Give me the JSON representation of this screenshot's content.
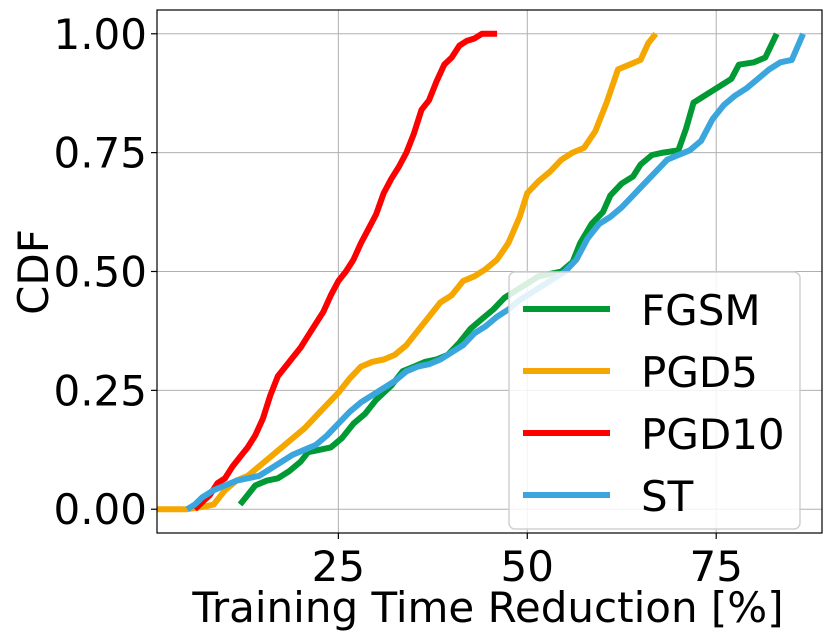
{
  "chart_data": {
    "type": "line",
    "title": "",
    "xlabel": "Training Time Reduction [%]",
    "ylabel": "CDF",
    "xlim": [
      1,
      89
    ],
    "ylim": [
      -0.05,
      1.05
    ],
    "xticks": [
      25,
      50,
      75
    ],
    "xtick_labels": [
      "25",
      "50",
      "75"
    ],
    "yticks": [
      0,
      0.25,
      0.5,
      0.75,
      1.0
    ],
    "ytick_labels": [
      "0.00",
      "0.25",
      "0.50",
      "0.75",
      "1.00"
    ],
    "grid": true,
    "legend": {
      "position": "bottom-right"
    },
    "series": [
      {
        "name": "FGSM",
        "color": "#009933",
        "points": [
          [
            12,
            0.01
          ],
          [
            13,
            0.03
          ],
          [
            14,
            0.05
          ],
          [
            15.5,
            0.06
          ],
          [
            17,
            0.065
          ],
          [
            18.5,
            0.08
          ],
          [
            20,
            0.1
          ],
          [
            21,
            0.12
          ],
          [
            22.5,
            0.125
          ],
          [
            24,
            0.13
          ],
          [
            25.5,
            0.15
          ],
          [
            27,
            0.18
          ],
          [
            28.5,
            0.2
          ],
          [
            30,
            0.23
          ],
          [
            32,
            0.26
          ],
          [
            33.5,
            0.29
          ],
          [
            35,
            0.3
          ],
          [
            36.5,
            0.31
          ],
          [
            38,
            0.315
          ],
          [
            39.5,
            0.325
          ],
          [
            41,
            0.35
          ],
          [
            42.5,
            0.38
          ],
          [
            44,
            0.4
          ],
          [
            45.5,
            0.42
          ],
          [
            47,
            0.445
          ],
          [
            48.5,
            0.46
          ],
          [
            50,
            0.475
          ],
          [
            51.5,
            0.49
          ],
          [
            53,
            0.495
          ],
          [
            54.5,
            0.5
          ],
          [
            56,
            0.52
          ],
          [
            57,
            0.56
          ],
          [
            58.5,
            0.6
          ],
          [
            60,
            0.625
          ],
          [
            61,
            0.66
          ],
          [
            62.5,
            0.685
          ],
          [
            64,
            0.7
          ],
          [
            65,
            0.725
          ],
          [
            66.5,
            0.745
          ],
          [
            68,
            0.75
          ],
          [
            70,
            0.755
          ],
          [
            71,
            0.8
          ],
          [
            72,
            0.855
          ],
          [
            74,
            0.875
          ],
          [
            75.5,
            0.89
          ],
          [
            77,
            0.905
          ],
          [
            78,
            0.935
          ],
          [
            80,
            0.94
          ],
          [
            81.5,
            0.95
          ],
          [
            83,
            1.0
          ]
        ]
      },
      {
        "name": "PGD5",
        "color": "#f5a700",
        "points": [
          [
            1,
            0.0
          ],
          [
            3,
            0.0
          ],
          [
            5,
            0.0
          ],
          [
            7,
            0.005
          ],
          [
            8.5,
            0.01
          ],
          [
            10,
            0.04
          ],
          [
            11.5,
            0.06
          ],
          [
            13,
            0.07
          ],
          [
            14.5,
            0.09
          ],
          [
            16,
            0.11
          ],
          [
            17.5,
            0.13
          ],
          [
            19,
            0.15
          ],
          [
            20.5,
            0.17
          ],
          [
            22,
            0.195
          ],
          [
            23.5,
            0.22
          ],
          [
            25,
            0.245
          ],
          [
            26.5,
            0.275
          ],
          [
            28,
            0.3
          ],
          [
            29.5,
            0.31
          ],
          [
            31,
            0.315
          ],
          [
            32.5,
            0.325
          ],
          [
            34,
            0.345
          ],
          [
            35.5,
            0.375
          ],
          [
            37,
            0.405
          ],
          [
            38.5,
            0.435
          ],
          [
            40,
            0.45
          ],
          [
            41.5,
            0.48
          ],
          [
            43,
            0.49
          ],
          [
            44.5,
            0.505
          ],
          [
            46,
            0.525
          ],
          [
            47.5,
            0.56
          ],
          [
            49,
            0.615
          ],
          [
            50,
            0.665
          ],
          [
            51.5,
            0.69
          ],
          [
            53,
            0.71
          ],
          [
            54.5,
            0.735
          ],
          [
            56,
            0.75
          ],
          [
            57.5,
            0.76
          ],
          [
            59,
            0.795
          ],
          [
            60.5,
            0.855
          ],
          [
            62,
            0.925
          ],
          [
            63.5,
            0.935
          ],
          [
            65,
            0.945
          ],
          [
            66,
            0.98
          ],
          [
            67,
            1.0
          ]
        ]
      },
      {
        "name": "PGD10",
        "color": "#ff0000",
        "points": [
          [
            6,
            0.0
          ],
          [
            7,
            0.015
          ],
          [
            8,
            0.03
          ],
          [
            9,
            0.055
          ],
          [
            10,
            0.065
          ],
          [
            11,
            0.09
          ],
          [
            12,
            0.11
          ],
          [
            13,
            0.13
          ],
          [
            14,
            0.155
          ],
          [
            15,
            0.19
          ],
          [
            16,
            0.24
          ],
          [
            17,
            0.28
          ],
          [
            18,
            0.3
          ],
          [
            19,
            0.32
          ],
          [
            20,
            0.34
          ],
          [
            21,
            0.365
          ],
          [
            22,
            0.39
          ],
          [
            23,
            0.415
          ],
          [
            24,
            0.45
          ],
          [
            25,
            0.48
          ],
          [
            26,
            0.5
          ],
          [
            27,
            0.525
          ],
          [
            28,
            0.56
          ],
          [
            29,
            0.59
          ],
          [
            30,
            0.62
          ],
          [
            31,
            0.665
          ],
          [
            32,
            0.695
          ],
          [
            33,
            0.72
          ],
          [
            34,
            0.75
          ],
          [
            35,
            0.79
          ],
          [
            36,
            0.84
          ],
          [
            37,
            0.86
          ],
          [
            38,
            0.9
          ],
          [
            39,
            0.935
          ],
          [
            40,
            0.95
          ],
          [
            41,
            0.975
          ],
          [
            42,
            0.985
          ],
          [
            43,
            0.99
          ],
          [
            44,
            1.0
          ],
          [
            45,
            1.0
          ],
          [
            46,
            1.0
          ]
        ]
      },
      {
        "name": "ST",
        "color": "#3aa6dd",
        "points": [
          [
            5,
            0.0
          ],
          [
            6,
            0.01
          ],
          [
            7,
            0.025
          ],
          [
            8.5,
            0.04
          ],
          [
            10,
            0.05
          ],
          [
            11.5,
            0.06
          ],
          [
            13,
            0.065
          ],
          [
            14.5,
            0.07
          ],
          [
            16,
            0.085
          ],
          [
            17.5,
            0.1
          ],
          [
            19,
            0.115
          ],
          [
            20.5,
            0.125
          ],
          [
            22,
            0.135
          ],
          [
            23.5,
            0.155
          ],
          [
            25,
            0.18
          ],
          [
            26.5,
            0.205
          ],
          [
            28,
            0.225
          ],
          [
            29.5,
            0.24
          ],
          [
            31,
            0.255
          ],
          [
            32.5,
            0.27
          ],
          [
            34,
            0.29
          ],
          [
            35.5,
            0.3
          ],
          [
            37,
            0.305
          ],
          [
            38.5,
            0.315
          ],
          [
            40,
            0.33
          ],
          [
            41.5,
            0.345
          ],
          [
            43,
            0.37
          ],
          [
            44.5,
            0.385
          ],
          [
            46,
            0.405
          ],
          [
            47.5,
            0.42
          ],
          [
            49,
            0.44
          ],
          [
            50.5,
            0.455
          ],
          [
            52,
            0.47
          ],
          [
            53.5,
            0.485
          ],
          [
            55,
            0.5
          ],
          [
            56.5,
            0.525
          ],
          [
            58,
            0.57
          ],
          [
            59.5,
            0.6
          ],
          [
            61,
            0.615
          ],
          [
            62.5,
            0.635
          ],
          [
            64,
            0.66
          ],
          [
            65.5,
            0.685
          ],
          [
            67,
            0.71
          ],
          [
            68.5,
            0.735
          ],
          [
            70,
            0.745
          ],
          [
            71.5,
            0.755
          ],
          [
            73,
            0.775
          ],
          [
            74.5,
            0.82
          ],
          [
            76,
            0.85
          ],
          [
            77.5,
            0.87
          ],
          [
            79,
            0.885
          ],
          [
            80.5,
            0.905
          ],
          [
            82,
            0.925
          ],
          [
            83.5,
            0.94
          ],
          [
            85,
            0.945
          ],
          [
            86.5,
            1.0
          ]
        ]
      }
    ]
  }
}
